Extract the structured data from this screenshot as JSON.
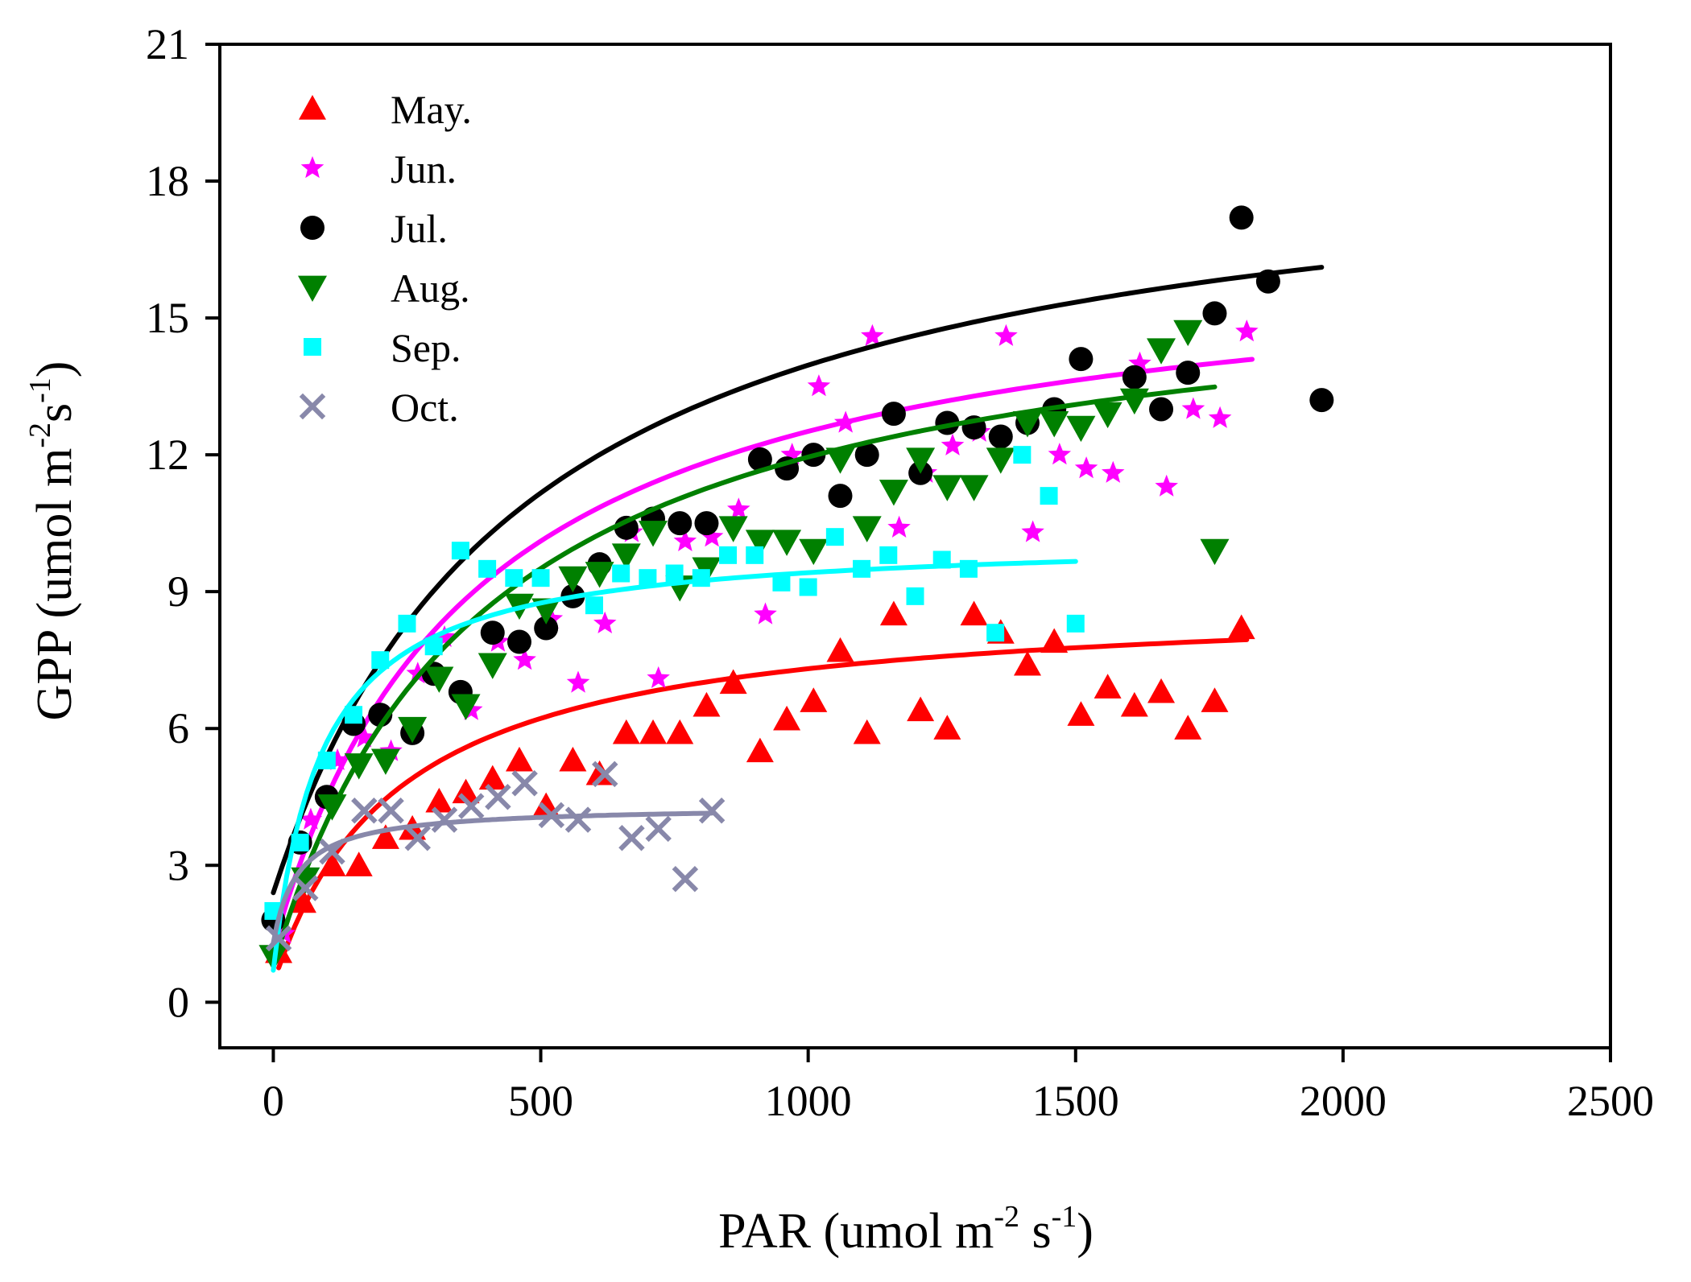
{
  "chart_data": {
    "type": "scatter",
    "xlabel": {
      "base": "PAR (umol m",
      "sup1": "-2",
      "mid": " s",
      "sup2": "-1",
      "end": ")"
    },
    "ylabel": {
      "base": "GPP (umol m",
      "sup1": "-2",
      "mid": "s",
      "sup2": "-1",
      "end": ")"
    },
    "xlim": [
      -100,
      2500
    ],
    "ylim": [
      -1,
      21
    ],
    "xticks": [
      0,
      500,
      1000,
      1500,
      2000,
      2500
    ],
    "yticks": [
      0,
      3,
      6,
      9,
      12,
      15,
      18,
      21
    ],
    "grid": false,
    "legend_position": "top-left",
    "series": [
      {
        "name": "May.",
        "color": "#ff0000",
        "marker": "triangle-up",
        "fit": {
          "a": 8.5,
          "k": 230,
          "c": 0.4,
          "xmin": 10,
          "xmax": 1820
        },
        "points": [
          [
            10,
            1.1
          ],
          [
            55,
            2.2
          ],
          [
            110,
            3.0
          ],
          [
            160,
            3.0
          ],
          [
            210,
            3.6
          ],
          [
            260,
            3.8
          ],
          [
            310,
            4.4
          ],
          [
            360,
            4.6
          ],
          [
            410,
            4.9
          ],
          [
            460,
            5.3
          ],
          [
            510,
            4.3
          ],
          [
            560,
            5.3
          ],
          [
            610,
            5.0
          ],
          [
            660,
            5.9
          ],
          [
            710,
            5.9
          ],
          [
            760,
            5.9
          ],
          [
            810,
            6.5
          ],
          [
            860,
            7.0
          ],
          [
            910,
            5.5
          ],
          [
            960,
            6.2
          ],
          [
            1010,
            6.6
          ],
          [
            1060,
            7.7
          ],
          [
            1110,
            5.9
          ],
          [
            1160,
            8.5
          ],
          [
            1210,
            6.4
          ],
          [
            1260,
            6.0
          ],
          [
            1310,
            8.5
          ],
          [
            1360,
            8.1
          ],
          [
            1410,
            7.4
          ],
          [
            1460,
            7.9
          ],
          [
            1510,
            6.3
          ],
          [
            1560,
            6.9
          ],
          [
            1610,
            6.5
          ],
          [
            1660,
            6.8
          ],
          [
            1710,
            6.0
          ],
          [
            1760,
            6.6
          ],
          [
            1810,
            8.2
          ]
        ]
      },
      {
        "name": "Jun.",
        "color": "#ff00ff",
        "marker": "star",
        "fit": {
          "a": 15.5,
          "k": 370,
          "c": 1.2,
          "xmin": 10,
          "xmax": 1830
        },
        "points": [
          [
            20,
            1.5
          ],
          [
            70,
            4.0
          ],
          [
            120,
            5.3
          ],
          [
            170,
            5.8
          ],
          [
            220,
            5.5
          ],
          [
            270,
            7.2
          ],
          [
            320,
            8.0
          ],
          [
            370,
            6.4
          ],
          [
            420,
            7.9
          ],
          [
            470,
            7.5
          ],
          [
            520,
            8.4
          ],
          [
            570,
            7.0
          ],
          [
            620,
            8.3
          ],
          [
            670,
            10.3
          ],
          [
            720,
            7.1
          ],
          [
            770,
            10.1
          ],
          [
            820,
            10.2
          ],
          [
            870,
            10.8
          ],
          [
            920,
            8.5
          ],
          [
            970,
            12.0
          ],
          [
            1020,
            13.5
          ],
          [
            1070,
            12.7
          ],
          [
            1120,
            14.6
          ],
          [
            1170,
            10.4
          ],
          [
            1220,
            11.6
          ],
          [
            1270,
            12.2
          ],
          [
            1320,
            12.5
          ],
          [
            1370,
            14.6
          ],
          [
            1420,
            10.3
          ],
          [
            1470,
            12.0
          ],
          [
            1520,
            11.7
          ],
          [
            1570,
            11.6
          ],
          [
            1620,
            14.0
          ],
          [
            1670,
            11.3
          ],
          [
            1720,
            13.0
          ],
          [
            1770,
            12.8
          ],
          [
            1820,
            14.7
          ]
        ]
      },
      {
        "name": "Jul.",
        "color": "#000000",
        "marker": "circle",
        "fit": {
          "a": 17.0,
          "k": 470,
          "c": 2.4,
          "xmin": 0,
          "xmax": 1960
        },
        "points": [
          [
            0,
            1.8
          ],
          [
            50,
            3.5
          ],
          [
            100,
            4.5
          ],
          [
            150,
            6.1
          ],
          [
            200,
            6.3
          ],
          [
            260,
            5.9
          ],
          [
            300,
            7.2
          ],
          [
            350,
            6.8
          ],
          [
            410,
            8.1
          ],
          [
            460,
            7.9
          ],
          [
            510,
            8.2
          ],
          [
            560,
            8.9
          ],
          [
            610,
            9.6
          ],
          [
            660,
            10.4
          ],
          [
            710,
            10.6
          ],
          [
            760,
            10.5
          ],
          [
            810,
            10.5
          ],
          [
            910,
            11.9
          ],
          [
            960,
            11.7
          ],
          [
            1010,
            12.0
          ],
          [
            1060,
            11.1
          ],
          [
            1110,
            12.0
          ],
          [
            1160,
            12.9
          ],
          [
            1210,
            11.6
          ],
          [
            1260,
            12.7
          ],
          [
            1310,
            12.6
          ],
          [
            1360,
            12.4
          ],
          [
            1410,
            12.7
          ],
          [
            1460,
            13.0
          ],
          [
            1510,
            14.1
          ],
          [
            1610,
            13.7
          ],
          [
            1660,
            13.0
          ],
          [
            1710,
            13.8
          ],
          [
            1760,
            15.1
          ],
          [
            1810,
            17.2
          ],
          [
            1860,
            15.8
          ],
          [
            1960,
            13.2
          ]
        ]
      },
      {
        "name": "Aug.",
        "color": "#008000",
        "marker": "triangle-down",
        "fit": {
          "a": 15.5,
          "k": 390,
          "c": 0.8,
          "xmin": 0,
          "xmax": 1760
        },
        "points": [
          [
            0,
            1.0
          ],
          [
            60,
            2.7
          ],
          [
            110,
            4.3
          ],
          [
            160,
            5.2
          ],
          [
            210,
            5.3
          ],
          [
            260,
            6.0
          ],
          [
            310,
            7.1
          ],
          [
            360,
            6.5
          ],
          [
            410,
            7.4
          ],
          [
            460,
            8.7
          ],
          [
            510,
            8.6
          ],
          [
            560,
            9.3
          ],
          [
            610,
            9.4
          ],
          [
            660,
            9.8
          ],
          [
            710,
            10.3
          ],
          [
            760,
            9.1
          ],
          [
            810,
            9.5
          ],
          [
            860,
            10.4
          ],
          [
            910,
            10.1
          ],
          [
            960,
            10.1
          ],
          [
            1010,
            9.9
          ],
          [
            1060,
            11.9
          ],
          [
            1110,
            10.4
          ],
          [
            1160,
            11.2
          ],
          [
            1210,
            11.9
          ],
          [
            1260,
            11.3
          ],
          [
            1310,
            11.3
          ],
          [
            1360,
            11.9
          ],
          [
            1410,
            12.7
          ],
          [
            1460,
            12.7
          ],
          [
            1510,
            12.6
          ],
          [
            1560,
            12.9
          ],
          [
            1610,
            13.2
          ],
          [
            1660,
            14.3
          ],
          [
            1710,
            14.7
          ],
          [
            1760,
            9.9
          ]
        ]
      },
      {
        "name": "Sep.",
        "color": "#00ffff",
        "marker": "square",
        "fit": {
          "a": 9.5,
          "k": 90,
          "c": 0.7,
          "xmin": 0,
          "xmax": 1500
        },
        "points": [
          [
            0,
            2.0
          ],
          [
            50,
            3.5
          ],
          [
            100,
            5.3
          ],
          [
            150,
            6.3
          ],
          [
            200,
            7.5
          ],
          [
            250,
            8.3
          ],
          [
            300,
            7.8
          ],
          [
            350,
            9.9
          ],
          [
            400,
            9.5
          ],
          [
            450,
            9.3
          ],
          [
            500,
            9.3
          ],
          [
            600,
            8.7
          ],
          [
            650,
            9.4
          ],
          [
            700,
            9.3
          ],
          [
            750,
            9.4
          ],
          [
            800,
            9.3
          ],
          [
            850,
            9.8
          ],
          [
            900,
            9.8
          ],
          [
            950,
            9.2
          ],
          [
            1000,
            9.1
          ],
          [
            1050,
            10.2
          ],
          [
            1100,
            9.5
          ],
          [
            1150,
            9.8
          ],
          [
            1200,
            8.9
          ],
          [
            1250,
            9.7
          ],
          [
            1300,
            9.5
          ],
          [
            1350,
            8.1
          ],
          [
            1400,
            12.0
          ],
          [
            1450,
            11.1
          ],
          [
            1500,
            8.3
          ]
        ]
      },
      {
        "name": "Oct.",
        "color": "#8888aa",
        "marker": "cross",
        "fit": {
          "a": 3.0,
          "k": 45,
          "c": 1.3,
          "xmin": 0,
          "xmax": 820
        },
        "points": [
          [
            10,
            1.4
          ],
          [
            60,
            2.5
          ],
          [
            110,
            3.3
          ],
          [
            170,
            4.2
          ],
          [
            220,
            4.2
          ],
          [
            270,
            3.6
          ],
          [
            320,
            4.0
          ],
          [
            370,
            4.3
          ],
          [
            420,
            4.5
          ],
          [
            470,
            4.8
          ],
          [
            520,
            4.1
          ],
          [
            570,
            4.0
          ],
          [
            620,
            5.0
          ],
          [
            670,
            3.6
          ],
          [
            720,
            3.8
          ],
          [
            770,
            2.7
          ],
          [
            820,
            4.2
          ]
        ]
      }
    ]
  }
}
